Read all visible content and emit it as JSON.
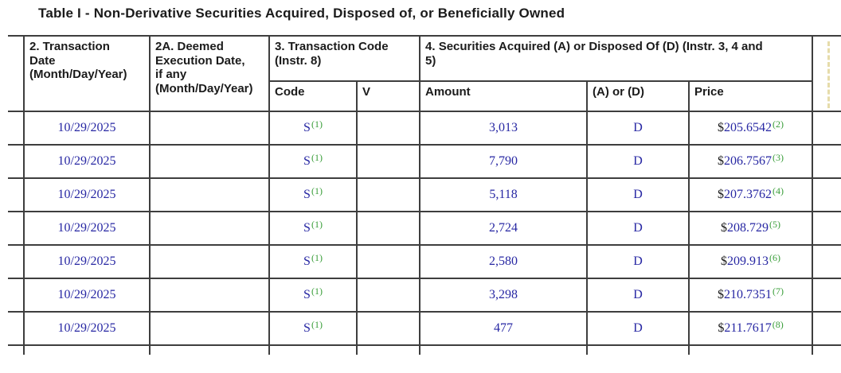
{
  "title": "Table I - Non-Derivative Securities Acquired, Disposed of, or Beneficially Owned",
  "colors": {
    "data_blue": "#2727a3",
    "footnote_green": "#3a9e3a",
    "border_gray": "#3e3e3e",
    "text_black": "#1b1b1b"
  },
  "header": {
    "transaction_date": "2. Transaction\nDate\n(Month/Day/Year)",
    "deemed_execution": "2A. Deemed\nExecution Date,\nif any\n(Month/Day/Year)",
    "transaction_code_group": "3. Transaction Code\n(Instr. 8)",
    "code": "Code",
    "v": "V",
    "securities_group": "4. Securities Acquired (A) or Disposed Of (D) (Instr. 3, 4 and\n5)",
    "amount": "Amount",
    "a_or_d": "(A) or (D)",
    "price": "Price"
  },
  "rows": [
    {
      "transaction_date": "10/29/2025",
      "deemed_execution_date": "",
      "code": "S",
      "code_footnote": "(1)",
      "v": "",
      "amount": "3,013",
      "acquired_disposed": "D",
      "currency": "$",
      "price": "205.6542",
      "price_footnote": "(2)"
    },
    {
      "transaction_date": "10/29/2025",
      "deemed_execution_date": "",
      "code": "S",
      "code_footnote": "(1)",
      "v": "",
      "amount": "7,790",
      "acquired_disposed": "D",
      "currency": "$",
      "price": "206.7567",
      "price_footnote": "(3)"
    },
    {
      "transaction_date": "10/29/2025",
      "deemed_execution_date": "",
      "code": "S",
      "code_footnote": "(1)",
      "v": "",
      "amount": "5,118",
      "acquired_disposed": "D",
      "currency": "$",
      "price": "207.3762",
      "price_footnote": "(4)"
    },
    {
      "transaction_date": "10/29/2025",
      "deemed_execution_date": "",
      "code": "S",
      "code_footnote": "(1)",
      "v": "",
      "amount": "2,724",
      "acquired_disposed": "D",
      "currency": "$",
      "price": "208.729",
      "price_footnote": "(5)"
    },
    {
      "transaction_date": "10/29/2025",
      "deemed_execution_date": "",
      "code": "S",
      "code_footnote": "(1)",
      "v": "",
      "amount": "2,580",
      "acquired_disposed": "D",
      "currency": "$",
      "price": "209.913",
      "price_footnote": "(6)"
    },
    {
      "transaction_date": "10/29/2025",
      "deemed_execution_date": "",
      "code": "S",
      "code_footnote": "(1)",
      "v": "",
      "amount": "3,298",
      "acquired_disposed": "D",
      "currency": "$",
      "price": "210.7351",
      "price_footnote": "(7)"
    },
    {
      "transaction_date": "10/29/2025",
      "deemed_execution_date": "",
      "code": "S",
      "code_footnote": "(1)",
      "v": "",
      "amount": "477",
      "acquired_disposed": "D",
      "currency": "$",
      "price": "211.7617",
      "price_footnote": "(8)"
    }
  ]
}
